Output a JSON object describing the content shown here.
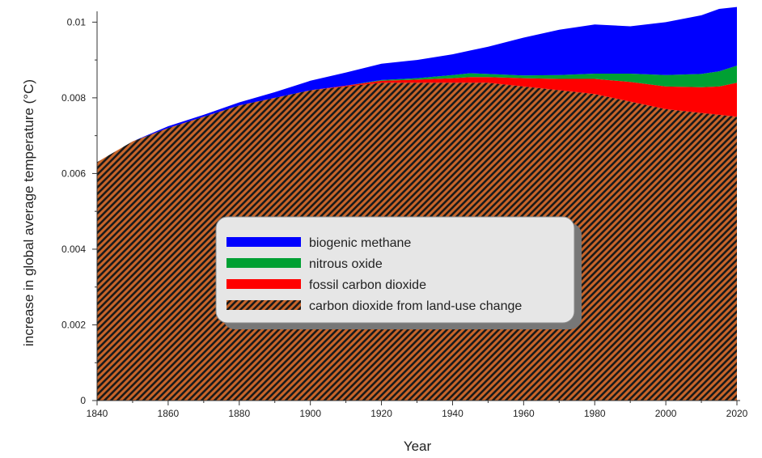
{
  "chart_data": {
    "type": "area",
    "stacked": true,
    "xlabel": "Year",
    "ylabel": "increase in global average temperature (°C)",
    "xlim": [
      1840,
      2020
    ],
    "ylim": [
      0,
      0.0102
    ],
    "x_ticks": [
      1840,
      1860,
      1880,
      1900,
      1920,
      1940,
      1960,
      1980,
      2000,
      2020
    ],
    "y_ticks": [
      0,
      0.002,
      0.004,
      0.006,
      0.008,
      0.01
    ],
    "y_tick_labels": [
      "0",
      "0.002",
      "0.004",
      "0.006",
      "0.008",
      "0.01"
    ],
    "grid": false,
    "legend_placement": "center",
    "x": [
      1840,
      1850,
      1860,
      1870,
      1880,
      1890,
      1900,
      1910,
      1920,
      1930,
      1940,
      1945,
      1950,
      1960,
      1970,
      1980,
      1990,
      2000,
      2010,
      2015,
      2020
    ],
    "series": [
      {
        "name": "carbon dioxide from land-use change",
        "color": "#c8652a",
        "hatch": true,
        "values": [
          0.0063,
          0.00685,
          0.0072,
          0.0075,
          0.0078,
          0.008,
          0.0082,
          0.0083,
          0.0084,
          0.0084,
          0.0084,
          0.0084,
          0.0084,
          0.0083,
          0.0082,
          0.0081,
          0.0079,
          0.0077,
          0.0076,
          0.00755,
          0.0075
        ]
      },
      {
        "name": "fossil carbon dioxide",
        "color": "#ff0000",
        "values": [
          0,
          0,
          0,
          0,
          0,
          0,
          0,
          2e-05,
          5e-05,
          8e-05,
          0.00012,
          0.00015,
          0.00015,
          0.00022,
          0.0003,
          0.0004,
          0.00052,
          0.0006,
          0.00068,
          0.00075,
          0.0009
        ]
      },
      {
        "name": "nitrous oxide",
        "color": "#00a033",
        "values": [
          0,
          0,
          0,
          0,
          0,
          0,
          0,
          0,
          2e-05,
          4e-05,
          8e-05,
          0.0001,
          8e-05,
          7e-05,
          0.0001,
          0.00014,
          0.00022,
          0.0003,
          0.00035,
          0.0004,
          0.00045
        ]
      },
      {
        "name": "biogenic methane",
        "color": "#0000ff",
        "values": [
          0,
          0,
          5e-05,
          5e-05,
          8e-05,
          0.00015,
          0.00025,
          0.00035,
          0.00043,
          0.00048,
          0.00055,
          0.0006,
          0.00072,
          0.001,
          0.0012,
          0.0013,
          0.00125,
          0.0014,
          0.00155,
          0.00165,
          0.00155
        ]
      }
    ],
    "legend_order": [
      "biogenic methane",
      "nitrous oxide",
      "fossil carbon dioxide",
      "carbon dioxide from land-use change"
    ]
  }
}
